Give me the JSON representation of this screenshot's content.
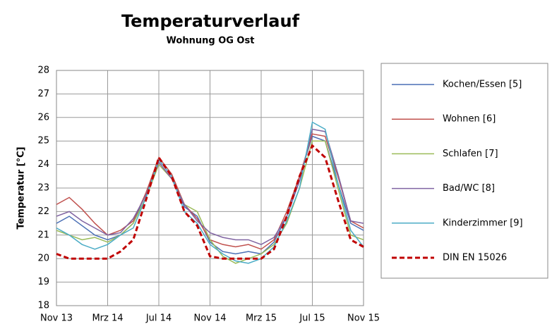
{
  "chart_data": {
    "type": "line",
    "title": "Temperaturverlauf",
    "subtitle": "Wohnung OG Ost",
    "y_label": "Temperatur [°C]",
    "categories": [
      "Nov 13",
      null,
      null,
      null,
      "Mrz 14",
      null,
      null,
      null,
      "Jul 14",
      null,
      null,
      null,
      "Nov 14",
      null,
      null,
      null,
      "Mrz 15",
      null,
      null,
      null,
      "Jul 15",
      null,
      null,
      null,
      "Nov 15"
    ],
    "ylim": [
      18,
      28
    ],
    "yticks": [
      18,
      19,
      20,
      21,
      22,
      23,
      24,
      25,
      26,
      27,
      28
    ],
    "grid": true,
    "legend": "right",
    "series": [
      {
        "name": "Kochen/Essen [5]",
        "color": "#4a6fb5",
        "values": [
          21.5,
          21.8,
          21.4,
          21,
          20.8,
          21,
          21.5,
          22.8,
          24.2,
          23.5,
          22.2,
          21.8,
          20.7,
          20.3,
          20.2,
          20.3,
          20.2,
          20.7,
          21.8,
          23.5,
          25.2,
          25,
          23.2,
          21.5,
          21.2
        ]
      },
      {
        "name": "Wohnen [6]",
        "color": "#c0504d",
        "values": [
          22.3,
          22.6,
          22.1,
          21.5,
          21,
          21.2,
          21.6,
          22.8,
          24.3,
          23.6,
          22.3,
          21.7,
          20.8,
          20.6,
          20.5,
          20.6,
          20.4,
          20.8,
          22,
          23.5,
          25.3,
          25.2,
          23.5,
          21.6,
          21.3
        ]
      },
      {
        "name": "Schlafen [7]",
        "color": "#9bbb59",
        "values": [
          21.2,
          21,
          20.8,
          20.9,
          20.7,
          21,
          21.5,
          22.6,
          24,
          23.4,
          22.3,
          22,
          20.8,
          20.1,
          19.8,
          20,
          20.2,
          20.6,
          21.5,
          23,
          25,
          25,
          23,
          21,
          20.8
        ]
      },
      {
        "name": "Bad/WC [8]",
        "color": "#8064a2",
        "values": [
          21.8,
          22,
          21.6,
          21.3,
          21,
          21.1,
          21.7,
          22.7,
          24.1,
          23.4,
          22.3,
          21.6,
          21.1,
          20.9,
          20.8,
          20.8,
          20.6,
          20.9,
          21.8,
          23.3,
          25.5,
          25.4,
          23.6,
          21.6,
          21.5
        ]
      },
      {
        "name": "Kinderzimmer [9]",
        "color": "#4bacc6",
        "values": [
          21.3,
          21,
          20.6,
          20.4,
          20.6,
          21,
          21.3,
          22.6,
          24.2,
          23.5,
          22,
          21.5,
          20.6,
          20.2,
          19.9,
          19.8,
          20,
          20.5,
          21.6,
          23,
          25.8,
          25.5,
          23.2,
          21.2,
          20.5
        ]
      },
      {
        "name": "DIN EN 15026",
        "color": "#c00000",
        "dashed": true,
        "values": [
          20.2,
          20,
          20,
          20,
          20,
          20.3,
          20.8,
          22.5,
          24.3,
          23.5,
          22,
          21.4,
          20.1,
          20,
          20,
          20,
          20,
          20.4,
          21.8,
          23.5,
          24.8,
          24.3,
          22.5,
          20.8,
          20.5
        ]
      }
    ]
  }
}
